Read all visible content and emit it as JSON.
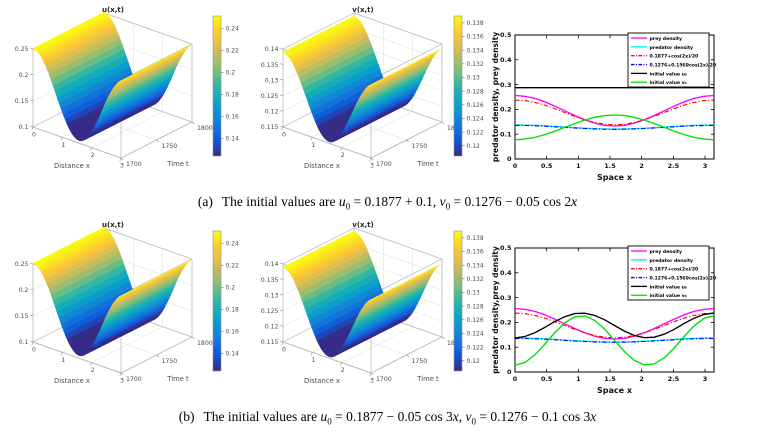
{
  "page": {
    "background": "#ffffff"
  },
  "captions": {
    "a": {
      "label": "(a)",
      "segments": [
        {
          "t": "The initial values are "
        },
        {
          "t": "u",
          "i": true
        },
        {
          "t": "0",
          "sub": true
        },
        {
          "t": " = 0.1877 + 0.1, "
        },
        {
          "t": "v",
          "i": true
        },
        {
          "t": "0",
          "sub": true
        },
        {
          "t": " = 0.1276 − 0.05 cos 2"
        },
        {
          "t": "x",
          "i": true
        }
      ]
    },
    "b": {
      "label": "(b)",
      "segments": [
        {
          "t": "The initial values are "
        },
        {
          "t": "u",
          "i": true
        },
        {
          "t": "0",
          "sub": true
        },
        {
          "t": " = 0.1877 − 0.05 cos 3"
        },
        {
          "t": "x",
          "i": true
        },
        {
          "t": ", "
        },
        {
          "t": "v",
          "i": true
        },
        {
          "t": "0",
          "sub": true
        },
        {
          "t": " = 0.1276 − 0.1 cos 3"
        },
        {
          "t": "x",
          "i": true
        }
      ]
    }
  },
  "colors": {
    "prey": "#ff00ff",
    "predator": "#00eeee",
    "red_ref": "#ff0000",
    "blue_ref": "#0000ff",
    "initial_u": "#000000",
    "initial_v": "#00e000",
    "grid": "#dcdcdc",
    "box": "#b4b4b4",
    "tick_text": "#4d4d4d"
  },
  "chart_data": [
    {
      "id": "surface_u_a",
      "type": "surface",
      "title": "u(x,t)",
      "xlabel": "Distance x",
      "ylabel": "Time t",
      "x_range": [
        0,
        3
      ],
      "t_range": [
        1700,
        1800
      ],
      "z_range": [
        0.1,
        0.25
      ],
      "x_ticks": [
        0,
        1,
        2,
        3
      ],
      "t_ticks": [
        1700,
        1750,
        1800
      ],
      "z_ticks": [
        0.1,
        0.15,
        0.2,
        0.25
      ],
      "profile_x": [
        0,
        0.25,
        0.5,
        0.75,
        1,
        1.25,
        1.5,
        1.75,
        2,
        2.25,
        2.5,
        2.75,
        3
      ],
      "profile_z": [
        0.2515,
        0.2425,
        0.2178,
        0.1834,
        0.1478,
        0.1196,
        0.1057,
        0.1097,
        0.1304,
        0.1628,
        0.2,
        0.2302,
        0.2486
      ],
      "colorbar": {
        "ticks": [
          0.14,
          0.16,
          0.18,
          0.2,
          0.22,
          0.24
        ],
        "range": [
          0.124,
          0.2512
        ]
      }
    },
    {
      "id": "surface_v_a",
      "type": "surface",
      "title": "v(x,t)",
      "xlabel": "Distance x",
      "ylabel": "Time t",
      "x_range": [
        0,
        3
      ],
      "t_range": [
        1700,
        1800
      ],
      "z_range": [
        0.115,
        0.14
      ],
      "x_ticks": [
        0,
        1,
        2,
        3
      ],
      "t_ticks": [
        1700,
        1750,
        1800
      ],
      "z_ticks": [
        0.115,
        0.12,
        0.125,
        0.13,
        0.135,
        0.14
      ],
      "profile_x": [
        0,
        0.25,
        0.5,
        0.75,
        1,
        1.25,
        1.5,
        1.75,
        2,
        2.25,
        2.5,
        2.75,
        3
      ],
      "profile_z": [
        0.139,
        0.1376,
        0.1336,
        0.1281,
        0.1224,
        0.1178,
        0.1156,
        0.1162,
        0.1196,
        0.1248,
        0.1306,
        0.1356,
        0.1385
      ],
      "colorbar": {
        "ticks": [
          0.12,
          0.122,
          0.124,
          0.126,
          0.128,
          0.13,
          0.132,
          0.134,
          0.136,
          0.138
        ],
        "range": [
          0.1185,
          0.139
        ]
      }
    },
    {
      "id": "lines_a",
      "type": "line",
      "title": "",
      "xlabel": "Space x",
      "ylabel": "predator density, prey density",
      "xlim": [
        0,
        3.1416
      ],
      "ylim": [
        0,
        0.5
      ],
      "x_ticks": [
        0,
        0.5,
        1,
        1.5,
        2,
        2.5,
        3
      ],
      "y_ticks": [
        0,
        0.1,
        0.2,
        0.3,
        0.4,
        0.5
      ],
      "grid": false,
      "legend_position": "top-right",
      "x": [
        0,
        0.157,
        0.314,
        0.471,
        0.628,
        0.785,
        0.942,
        1.1,
        1.257,
        1.414,
        1.571,
        1.728,
        1.885,
        2.042,
        2.199,
        2.356,
        2.513,
        2.67,
        2.827,
        2.985,
        3.142
      ],
      "series": [
        {
          "name": "prey density",
          "color": "#ff00ff",
          "style": "solid",
          "values": [
            0.256,
            0.253,
            0.2443,
            0.2307,
            0.2135,
            0.1945,
            0.1755,
            0.1583,
            0.1447,
            0.136,
            0.133,
            0.136,
            0.1447,
            0.1583,
            0.1755,
            0.1945,
            0.2135,
            0.2307,
            0.2443,
            0.253,
            0.256
          ]
        },
        {
          "name": "predator density",
          "color": "#00eeee",
          "style": "solid",
          "values": [
            0.1375,
            0.1371,
            0.1359,
            0.134,
            0.1316,
            0.129,
            0.1264,
            0.124,
            0.1221,
            0.1209,
            0.1205,
            0.1209,
            0.1221,
            0.124,
            0.1264,
            0.129,
            0.1316,
            0.134,
            0.1359,
            0.1371,
            0.1375
          ]
        },
        {
          "name": "0.1877+cos(2x)/20",
          "color": "#ff0000",
          "style": "dashdot",
          "values": [
            0.2377,
            0.2353,
            0.2282,
            0.2171,
            0.2032,
            0.1877,
            0.1723,
            0.1583,
            0.1473,
            0.1402,
            0.1377,
            0.1402,
            0.1473,
            0.1583,
            0.1723,
            0.1877,
            0.2032,
            0.2171,
            0.2282,
            0.2353,
            0.2377
          ]
        },
        {
          "name": "0.1276+0.1569cos(2x)/20",
          "color": "#0000ff",
          "style": "dashdot",
          "values": [
            0.1354,
            0.135,
            0.1339,
            0.1322,
            0.13,
            0.1276,
            0.1252,
            0.123,
            0.1213,
            0.1202,
            0.1198,
            0.1202,
            0.1213,
            0.123,
            0.1252,
            0.1276,
            0.13,
            0.1322,
            0.1339,
            0.135,
            0.1354
          ]
        },
        {
          "name": "initial value u₀",
          "color": "#000000",
          "style": "solid",
          "values": [
            0.2877,
            0.2877,
            0.2877,
            0.2877,
            0.2877,
            0.2877,
            0.2877,
            0.2877,
            0.2877,
            0.2877,
            0.2877,
            0.2877,
            0.2877,
            0.2877,
            0.2877,
            0.2877,
            0.2877,
            0.2877,
            0.2877,
            0.2877,
            0.2877
          ]
        },
        {
          "name": "initial value v₀",
          "color": "#00e000",
          "style": "solid",
          "values": [
            0.0776,
            0.0801,
            0.0872,
            0.0982,
            0.1122,
            0.1276,
            0.1431,
            0.157,
            0.1681,
            0.1752,
            0.1776,
            0.1752,
            0.1681,
            0.157,
            0.1431,
            0.1276,
            0.1122,
            0.0982,
            0.0872,
            0.0801,
            0.0776
          ]
        }
      ]
    },
    {
      "id": "surface_u_b",
      "type": "surface",
      "title": "u(x,t)",
      "xlabel": "Distance x",
      "ylabel": "Time t",
      "x_range": [
        0,
        3
      ],
      "t_range": [
        1700,
        1800
      ],
      "z_range": [
        0.1,
        0.25
      ],
      "x_ticks": [
        0,
        1,
        2,
        3
      ],
      "t_ticks": [
        1700,
        1750,
        1800
      ],
      "z_ticks": [
        0.1,
        0.15,
        0.2,
        0.25
      ],
      "profile_x": [
        0,
        0.25,
        0.5,
        0.75,
        1,
        1.25,
        1.5,
        1.75,
        2,
        2.25,
        2.5,
        2.75,
        3
      ],
      "profile_z": [
        0.2515,
        0.2425,
        0.2178,
        0.1834,
        0.1478,
        0.1196,
        0.1057,
        0.1097,
        0.1304,
        0.1628,
        0.2,
        0.2302,
        0.2486
      ],
      "colorbar": {
        "ticks": [
          0.14,
          0.16,
          0.18,
          0.2,
          0.22,
          0.24
        ],
        "range": [
          0.124,
          0.2512
        ]
      }
    },
    {
      "id": "surface_v_b",
      "type": "surface",
      "title": "v(x,t)",
      "xlabel": "Distance x",
      "ylabel": "Time t",
      "x_range": [
        0,
        3
      ],
      "t_range": [
        1700,
        1800
      ],
      "z_range": [
        0.115,
        0.14
      ],
      "x_ticks": [
        0,
        1,
        2,
        3
      ],
      "t_ticks": [
        1700,
        1750,
        1800
      ],
      "z_ticks": [
        0.115,
        0.12,
        0.125,
        0.13,
        0.135,
        0.14
      ],
      "profile_x": [
        0,
        0.25,
        0.5,
        0.75,
        1,
        1.25,
        1.5,
        1.75,
        2,
        2.25,
        2.5,
        2.75,
        3
      ],
      "profile_z": [
        0.139,
        0.1376,
        0.1336,
        0.1281,
        0.1224,
        0.1178,
        0.1156,
        0.1162,
        0.1196,
        0.1248,
        0.1306,
        0.1356,
        0.1385
      ],
      "colorbar": {
        "ticks": [
          0.12,
          0.122,
          0.124,
          0.126,
          0.128,
          0.13,
          0.132,
          0.134,
          0.136,
          0.138
        ],
        "range": [
          0.1185,
          0.139
        ]
      }
    },
    {
      "id": "lines_b",
      "type": "line",
      "title": "",
      "xlabel": "Space x",
      "ylabel": "predator density,prey density",
      "xlim": [
        0,
        3.1416
      ],
      "ylim": [
        0,
        0.5
      ],
      "x_ticks": [
        0,
        0.5,
        1,
        1.5,
        2,
        2.5,
        3
      ],
      "y_ticks": [
        0,
        0.1,
        0.2,
        0.3,
        0.4,
        0.5
      ],
      "grid": false,
      "legend_position": "top-right",
      "x": [
        0,
        0.157,
        0.314,
        0.471,
        0.628,
        0.785,
        0.942,
        1.1,
        1.257,
        1.414,
        1.571,
        1.728,
        1.885,
        2.042,
        2.199,
        2.356,
        2.513,
        2.67,
        2.827,
        2.985,
        3.142
      ],
      "series": [
        {
          "name": "prey density",
          "color": "#ff00ff",
          "style": "solid",
          "values": [
            0.256,
            0.253,
            0.2443,
            0.2307,
            0.2135,
            0.1945,
            0.1755,
            0.1583,
            0.1447,
            0.136,
            0.133,
            0.136,
            0.1447,
            0.1583,
            0.1755,
            0.1945,
            0.2135,
            0.2307,
            0.2443,
            0.253,
            0.256
          ]
        },
        {
          "name": "predator density",
          "color": "#00eeee",
          "style": "solid",
          "values": [
            0.1375,
            0.1371,
            0.1359,
            0.134,
            0.1316,
            0.129,
            0.1264,
            0.124,
            0.1221,
            0.1209,
            0.1205,
            0.1209,
            0.1221,
            0.124,
            0.1264,
            0.129,
            0.1316,
            0.134,
            0.1359,
            0.1371,
            0.1375
          ]
        },
        {
          "name": "0.1877+cos(2x)/20",
          "color": "#ff0000",
          "style": "dashdot",
          "values": [
            0.2377,
            0.2353,
            0.2282,
            0.2171,
            0.2032,
            0.1877,
            0.1723,
            0.1583,
            0.1473,
            0.1402,
            0.1377,
            0.1402,
            0.1473,
            0.1583,
            0.1723,
            0.1877,
            0.2032,
            0.2171,
            0.2282,
            0.2353,
            0.2377
          ]
        },
        {
          "name": "0.1276+0.1569cos(2x)/20",
          "color": "#0000ff",
          "style": "dashdot",
          "values": [
            0.1354,
            0.135,
            0.1339,
            0.1322,
            0.13,
            0.1276,
            0.1252,
            0.123,
            0.1213,
            0.1202,
            0.1198,
            0.1202,
            0.1213,
            0.123,
            0.1252,
            0.1276,
            0.13,
            0.1322,
            0.1339,
            0.135,
            0.1354
          ]
        },
        {
          "name": "initial value u₀",
          "color": "#000000",
          "style": "solid",
          "values": [
            0.1377,
            0.1432,
            0.1583,
            0.1799,
            0.2032,
            0.2231,
            0.2353,
            0.2371,
            0.2282,
            0.2104,
            0.1877,
            0.165,
            0.1473,
            0.1383,
            0.1402,
            0.1523,
            0.1723,
            0.1955,
            0.2171,
            0.2323,
            0.2377
          ]
        },
        {
          "name": "initial value v₀",
          "color": "#00e000",
          "style": "solid",
          "values": [
            0.0276,
            0.0385,
            0.0688,
            0.112,
            0.1585,
            0.1983,
            0.2227,
            0.2264,
            0.2085,
            0.173,
            0.1276,
            0.0822,
            0.0467,
            0.0288,
            0.0325,
            0.0569,
            0.0967,
            0.1432,
            0.1864,
            0.2167,
            0.2276
          ]
        }
      ]
    }
  ]
}
